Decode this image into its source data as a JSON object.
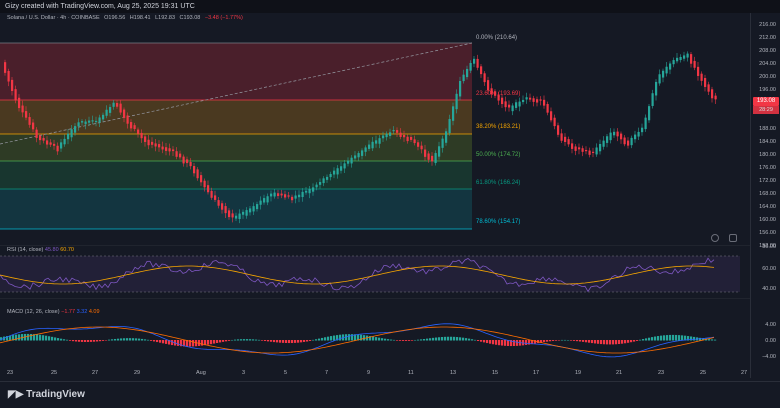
{
  "header": {
    "credit": "Gizy created with TradingView.com, Aug 25, 2025 19:31 UTC"
  },
  "legend": {
    "symbol": "Solana / U.S. Dollar · 4h · COINBASE",
    "open": "O196.56",
    "high": "H198.41",
    "low": "L192.83",
    "close": "C193.08",
    "change": "−3.48 (−1.77%)"
  },
  "fib_levels": [
    {
      "label": "0.00% (210.64)",
      "color": "#b2b5be"
    },
    {
      "label": "23.60% (193.69)",
      "color": "#f23645"
    },
    {
      "label": "38.20% (183.21)",
      "color": "#f7a600"
    },
    {
      "label": "50.00% (174.72)",
      "color": "#4caf50"
    },
    {
      "label": "61.80% (166.24)",
      "color": "#089981"
    },
    {
      "label": "78.60% (154.17)",
      "color": "#00bcd4"
    }
  ],
  "price_axis": {
    "ticks": [
      "216.00",
      "212.00",
      "208.00",
      "204.00",
      "200.00",
      "196.00",
      "188.00",
      "184.00",
      "180.00",
      "176.00",
      "172.00",
      "168.00",
      "164.00",
      "160.00",
      "156.00",
      "152.00"
    ],
    "current": "193.08",
    "countdown": "28:29"
  },
  "rsi": {
    "label": "RSI (14, close)",
    "value1": "45.80",
    "value2": "60.70",
    "ticks": [
      "80.00",
      "60.00",
      "40.00"
    ]
  },
  "macd": {
    "label": "MACD (12, 26, close)",
    "v1": "−1.77",
    "v2": "3.32",
    "v3": "4.09",
    "ticks": [
      "4.00",
      "0.00",
      "−4.00"
    ]
  },
  "x_labels": [
    "23",
    "25",
    "27",
    "29",
    "Aug",
    "3",
    "5",
    "7",
    "9",
    "11",
    "13",
    "15",
    "17",
    "19",
    "21",
    "23",
    "25",
    "27"
  ],
  "footer": {
    "brand": "TradingView"
  },
  "colors": {
    "up": "#26a69a",
    "down": "#f23645",
    "bg": "#151924"
  }
}
